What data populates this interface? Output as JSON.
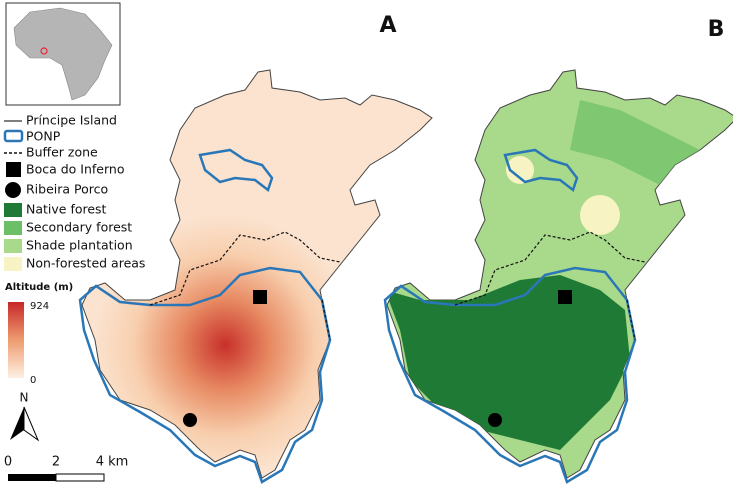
{
  "panels": [
    "A",
    "B"
  ],
  "legend": {
    "items": [
      "Príncipe Island",
      "PONP",
      "Buffer zone",
      "Boca do Inferno",
      "Ribeira Porco",
      "Native forest",
      "Secondary forest",
      "Shade plantation",
      "Non-forested areas"
    ]
  },
  "altitude_legend": {
    "title": "Altitude (m)",
    "max": 924,
    "min": 0
  },
  "north_arrow": "N",
  "scale_bar": [
    "0",
    "2",
    "4 km"
  ]
}
